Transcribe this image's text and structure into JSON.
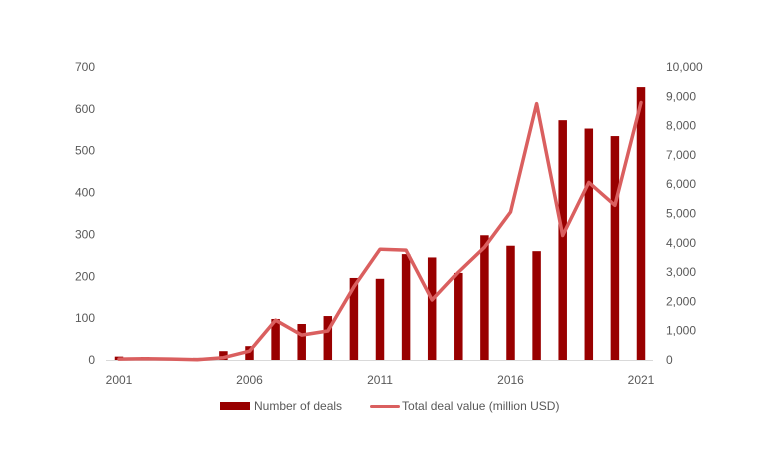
{
  "chart_data": {
    "type": "bar+line",
    "title": "",
    "categories": [
      "2001",
      "2002",
      "2003",
      "2004",
      "2005",
      "2006",
      "2007",
      "2008",
      "2009",
      "2010",
      "2011",
      "2012",
      "2013",
      "2014",
      "2015",
      "2016",
      "2017",
      "2018",
      "2019",
      "2020",
      "2021"
    ],
    "x_tick_labels": [
      "2001",
      "2006",
      "2011",
      "2016",
      "2021"
    ],
    "series": [
      {
        "name": "Number of deals",
        "type": "bar",
        "axis": "left",
        "color": "#990000",
        "values": [
          8,
          7,
          2,
          5,
          21,
          33,
          98,
          86,
          105,
          196,
          194,
          253,
          245,
          208,
          298,
          273,
          260,
          573,
          553,
          535,
          652
        ]
      },
      {
        "name": "Total deal value (million USD)",
        "type": "line",
        "axis": "right",
        "color": "#DA5F5F",
        "values": [
          30,
          40,
          30,
          10,
          80,
          300,
          1360,
          850,
          990,
          2500,
          3780,
          3750,
          2050,
          3000,
          3850,
          5050,
          8750,
          4250,
          6060,
          5280,
          8790
        ]
      }
    ],
    "left_axis": {
      "label": "",
      "ylim": [
        0,
        700
      ],
      "ticks": [
        "0",
        "100",
        "200",
        "300",
        "400",
        "500",
        "600",
        "700"
      ]
    },
    "right_axis": {
      "label": "",
      "ylim": [
        0,
        10000
      ],
      "ticks": [
        "0",
        "1,000",
        "2,000",
        "3,000",
        "4,000",
        "5,000",
        "6,000",
        "7,000",
        "8,000",
        "9,000",
        "10,000"
      ]
    },
    "grid": false,
    "legend_position": "bottom"
  },
  "legend": {
    "bar_label": "Number of deals",
    "line_label": "Total deal value (million USD)"
  }
}
